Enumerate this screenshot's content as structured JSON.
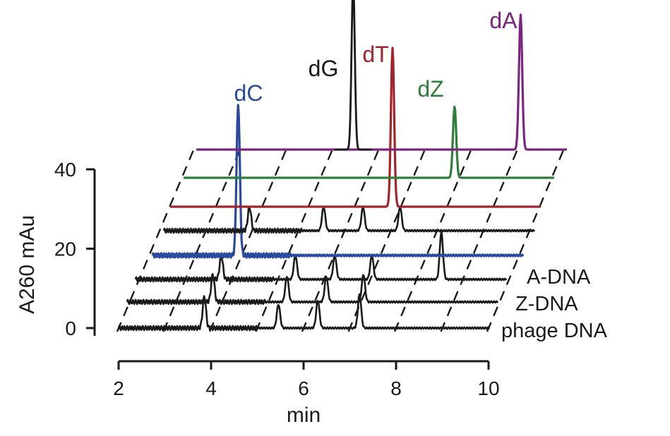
{
  "chart_data": {
    "type": "line",
    "subtype": "stacked-chromatogram-3d-offset",
    "title": "",
    "xlabel": "min",
    "ylabel": "A260 mAu",
    "xlim": [
      2,
      10
    ],
    "ylim": [
      0,
      40
    ],
    "x_ticks": [
      "2",
      "4",
      "6",
      "8",
      "10"
    ],
    "y_ticks": [
      "0",
      "20",
      "40"
    ],
    "grid": false,
    "colors": {
      "sample": "#1a1a1a",
      "dC": "#2b4a9b",
      "dG": "#1a1a1a",
      "dT": "#a3232a",
      "dZ": "#2f7d3a",
      "dA": "#7a2580"
    },
    "sample_labels": [
      "A-DNA",
      "Z-DNA",
      "phage DNA"
    ],
    "peak_labels": [
      {
        "text": "dC",
        "color": "#2b4a9b"
      },
      {
        "text": "dG",
        "color": "#1a1a1a"
      },
      {
        "text": "dT",
        "color": "#a3232a"
      },
      {
        "text": "dZ",
        "color": "#2f7d3a"
      },
      {
        "text": "dA",
        "color": "#7a2580"
      }
    ],
    "series": [
      {
        "name": "phage DNA",
        "color": "#1a1a1a",
        "peaks": [
          {
            "t": 3.85,
            "h": 8
          },
          {
            "t": 5.45,
            "h": 6
          },
          {
            "t": 6.3,
            "h": 7
          },
          {
            "t": 7.2,
            "h": 8.5
          }
        ]
      },
      {
        "name": "Z-DNA",
        "color": "#1a1a1a",
        "peaks": [
          {
            "t": 3.85,
            "h": 7
          },
          {
            "t": 5.45,
            "h": 6.5
          },
          {
            "t": 6.3,
            "h": 6.5
          },
          {
            "t": 7.1,
            "h": 7
          }
        ]
      },
      {
        "name": "A-DNA",
        "color": "#1a1a1a",
        "peaks": [
          {
            "t": 3.85,
            "h": 6
          },
          {
            "t": 5.45,
            "h": 6
          },
          {
            "t": 6.3,
            "h": 6
          },
          {
            "t": 7.1,
            "h": 6
          },
          {
            "t": 8.6,
            "h": 12
          }
        ]
      },
      {
        "name": "dC",
        "color": "#2b4a9b",
        "peaks": [
          {
            "t": 3.85,
            "h": 38
          }
        ]
      },
      {
        "name": "",
        "color": "#1a1a1a",
        "peaks": [
          {
            "t": 3.85,
            "h": 6
          },
          {
            "t": 5.45,
            "h": 6
          },
          {
            "t": 6.3,
            "h": 6
          },
          {
            "t": 7.1,
            "h": 6
          }
        ]
      },
      {
        "name": "dT",
        "color": "#a3232a",
        "peaks": [
          {
            "t": 6.8,
            "h": 40
          }
        ]
      },
      {
        "name": "dZ",
        "color": "#2f7d3a",
        "peaks": [
          {
            "t": 7.85,
            "h": 18
          }
        ]
      },
      {
        "name": "dA",
        "color": "#7a2580",
        "peaks": [
          {
            "t": 9.0,
            "h": 34
          }
        ]
      },
      {
        "name": "dG",
        "color": "#1a1a1a",
        "peaks": [
          {
            "t": 5.6,
            "h": 42
          }
        ]
      }
    ]
  }
}
